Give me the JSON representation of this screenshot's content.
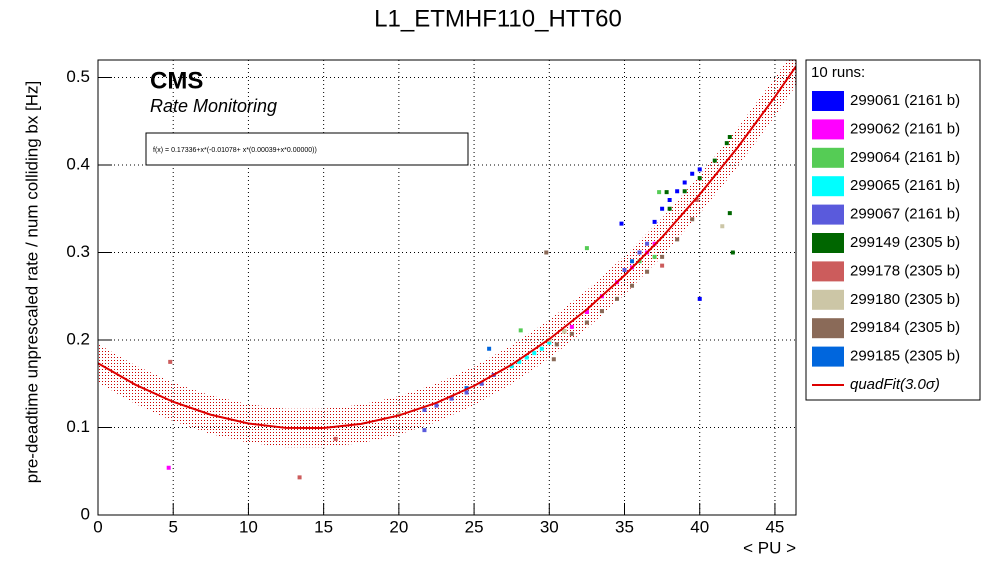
{
  "chart_data": {
    "type": "scatter",
    "title": "L1_ETMHF110_HTT60",
    "x_label": "< PU >",
    "y_label": "pre-deadtime unprescaled rate / num colliding bx [Hz]",
    "experiment": "CMS",
    "subtitle": "Rate Monitoring",
    "fit_formula": "f(x) = 0.17336+x*(-0.01078+ x*(0.00039+x*0.00000))",
    "legend_title": "10 runs:",
    "xlim": [
      0,
      46.4
    ],
    "ylim": [
      0,
      0.52
    ],
    "xticks": [
      0,
      5,
      10,
      15,
      20,
      25,
      30,
      35,
      40,
      45
    ],
    "yticks": [
      0,
      0.1,
      0.2,
      0.3,
      0.4,
      0.5
    ],
    "grid": true,
    "series": [
      {
        "name": "299061 (2161 b)",
        "color": "#0000ff",
        "x": [
          34.8,
          37,
          37.5,
          38,
          38.5,
          39,
          39.5,
          40,
          40
        ],
        "values": [
          0.333,
          0.335,
          0.35,
          0.36,
          0.37,
          0.38,
          0.39,
          0.395,
          0.247
        ]
      },
      {
        "name": "299062 (2161 b)",
        "color": "#ff00ff",
        "x": [
          4.7,
          31.5,
          32.5,
          33.5,
          34.5,
          35.5,
          36.5,
          37
        ],
        "values": [
          0.054,
          0.215,
          0.232,
          0.25,
          0.266,
          0.283,
          0.3,
          0.31
        ]
      },
      {
        "name": "299064 (2161 b)",
        "color": "#55cc55",
        "x": [
          28.1,
          30,
          31,
          32.5,
          36,
          37,
          37.3
        ],
        "values": [
          0.211,
          0.2,
          0.21,
          0.305,
          0.29,
          0.295,
          0.369
        ]
      },
      {
        "name": "299065 (2161 b)",
        "color": "#00ffff",
        "x": [
          27.5,
          28,
          28.5,
          29,
          29.5,
          30
        ],
        "values": [
          0.17,
          0.175,
          0.18,
          0.185,
          0.19,
          0.197
        ]
      },
      {
        "name": "299067 (2161 b)",
        "color": "#5a5adc",
        "x": [
          21.7,
          21.7,
          22.5,
          23.5,
          24.5,
          25.5,
          26.3,
          35,
          36,
          36.5
        ],
        "values": [
          0.097,
          0.12,
          0.125,
          0.133,
          0.14,
          0.15,
          0.16,
          0.28,
          0.3,
          0.31
        ]
      },
      {
        "name": "299149 (2305 b)",
        "color": "#006600",
        "x": [
          37.8,
          38,
          39,
          40,
          41,
          41.8,
          42,
          42,
          42.2
        ],
        "values": [
          0.369,
          0.35,
          0.37,
          0.385,
          0.405,
          0.425,
          0.432,
          0.345,
          0.3
        ]
      },
      {
        "name": "299178 (2305 b)",
        "color": "#cc5c5c",
        "x": [
          4.8,
          13.4,
          15.8,
          37.5,
          39.8
        ],
        "values": [
          0.175,
          0.043,
          0.087,
          0.285,
          0.36
        ]
      },
      {
        "name": "299180 (2305 b)",
        "color": "#ccc6a6",
        "x": [
          20,
          30,
          31,
          41.5
        ],
        "values": [
          0.115,
          0.2,
          0.21,
          0.33
        ]
      },
      {
        "name": "299184 (2305 b)",
        "color": "#8a6a58",
        "x": [
          29.8,
          30.3,
          30.5,
          31.5,
          32.5,
          33.5,
          34.5,
          35.5,
          36.5,
          37.5,
          38.5,
          39.5
        ],
        "values": [
          0.3,
          0.178,
          0.195,
          0.207,
          0.22,
          0.233,
          0.247,
          0.262,
          0.278,
          0.295,
          0.315,
          0.338
        ]
      },
      {
        "name": "299185 (2305 b)",
        "color": "#0066dd",
        "x": [
          24.5,
          26,
          35.5
        ],
        "values": [
          0.145,
          0.19,
          0.29
        ]
      }
    ],
    "fit": {
      "name": "quadFit(3.0σ)",
      "color": "#dd0000",
      "x": [
        0,
        2.5,
        5,
        7.5,
        10,
        12.5,
        15,
        17.5,
        20,
        22.5,
        25,
        27.5,
        30,
        32.5,
        35,
        37.5,
        40,
        42.5,
        45,
        46.4
      ],
      "values": [
        0.1734,
        0.1488,
        0.1293,
        0.1146,
        0.1046,
        0.0995,
        0.0994,
        0.1041,
        0.1138,
        0.1282,
        0.1476,
        0.1718,
        0.201,
        0.235,
        0.2738,
        0.3175,
        0.3664,
        0.4196,
        0.4779,
        0.5128
      ],
      "low": [
        0.1514,
        0.1268,
        0.1073,
        0.0926,
        0.0826,
        0.0775,
        0.0774,
        0.0821,
        0.0918,
        0.1062,
        0.1256,
        0.1498,
        0.179,
        0.213,
        0.2518,
        0.2955,
        0.3444,
        0.3976,
        0.4559,
        0.4908
      ],
      "high": [
        0.1954,
        0.1708,
        0.1513,
        0.1366,
        0.1266,
        0.1215,
        0.1214,
        0.1261,
        0.1358,
        0.1502,
        0.1696,
        0.1938,
        0.223,
        0.257,
        0.2958,
        0.3395,
        0.3884,
        0.4416,
        0.4999,
        0.5348
      ]
    }
  }
}
